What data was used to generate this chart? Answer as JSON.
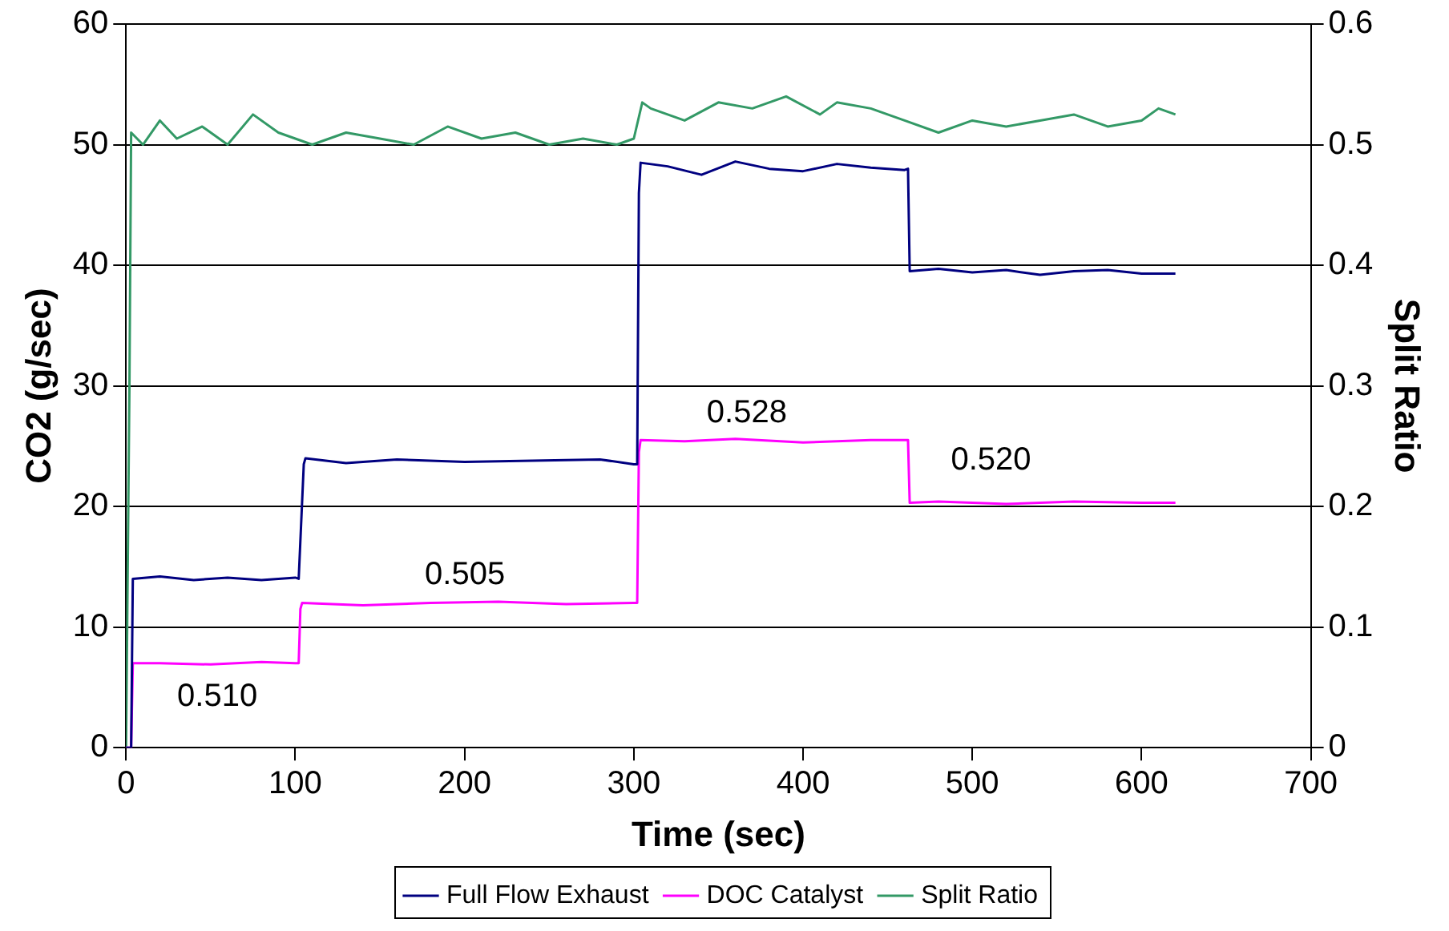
{
  "chart_data": {
    "type": "line",
    "xlabel": "Time (sec)",
    "ylabel": "CO2 (g/sec)",
    "y2label": "Split Ratio",
    "xlim": [
      0,
      700
    ],
    "xticks": [
      0,
      100,
      200,
      300,
      400,
      500,
      600,
      700
    ],
    "ylim": [
      0,
      60
    ],
    "yticks": [
      0,
      10,
      20,
      30,
      40,
      50,
      60
    ],
    "y2lim": [
      0,
      0.6
    ],
    "y2ticks": [
      0,
      0.1,
      0.2,
      0.3,
      0.4,
      0.5,
      0.6
    ],
    "grid": "y",
    "legend": "bottom",
    "marker": "none",
    "line_style": "solid",
    "series": [
      {
        "name": "Full Flow Exhaust",
        "color": "#000080",
        "x": [
          0,
          3,
          4,
          20,
          40,
          60,
          80,
          100,
          102,
          105,
          106,
          130,
          160,
          200,
          240,
          280,
          300,
          302,
          303,
          304,
          320,
          340,
          360,
          380,
          400,
          420,
          440,
          460,
          462,
          463,
          480,
          500,
          520,
          540,
          560,
          580,
          600,
          620
        ],
        "values": [
          0,
          0,
          14,
          14.2,
          13.9,
          14.1,
          13.9,
          14.1,
          14,
          23.5,
          24,
          23.6,
          23.9,
          23.7,
          23.8,
          23.9,
          23.5,
          23.5,
          46,
          48.5,
          48.2,
          47.5,
          48.6,
          48,
          47.8,
          48.4,
          48.1,
          47.9,
          48,
          39.5,
          39.7,
          39.4,
          39.6,
          39.2,
          39.5,
          39.6,
          39.3,
          39.3
        ]
      },
      {
        "name": "DOC Catalyst",
        "color": "#ff00ff",
        "x": [
          0,
          3,
          4,
          20,
          50,
          80,
          100,
          102,
          103,
          104,
          140,
          180,
          220,
          260,
          300,
          302,
          303,
          304,
          330,
          360,
          400,
          440,
          460,
          462,
          463,
          480,
          520,
          560,
          600,
          620
        ],
        "values": [
          0,
          0,
          7,
          7,
          6.9,
          7.1,
          7,
          7,
          11.5,
          12,
          11.8,
          12,
          12.1,
          11.9,
          12,
          12,
          24.5,
          25.5,
          25.4,
          25.6,
          25.3,
          25.5,
          25.5,
          25.5,
          20.3,
          20.4,
          20.2,
          20.4,
          20.3,
          20.3
        ]
      },
      {
        "name": "Split Ratio",
        "color": "#339966",
        "axis": "y2",
        "x": [
          0,
          2,
          3,
          10,
          20,
          30,
          45,
          60,
          75,
          90,
          110,
          130,
          150,
          170,
          190,
          210,
          230,
          250,
          270,
          290,
          300,
          305,
          310,
          330,
          350,
          370,
          390,
          410,
          420,
          440,
          460,
          480,
          500,
          520,
          540,
          560,
          580,
          600,
          610,
          620
        ],
        "values": [
          0,
          0.3,
          0.51,
          0.5,
          0.52,
          0.505,
          0.515,
          0.5,
          0.525,
          0.51,
          0.5,
          0.51,
          0.505,
          0.5,
          0.515,
          0.505,
          0.51,
          0.5,
          0.505,
          0.5,
          0.505,
          0.535,
          0.53,
          0.52,
          0.535,
          0.53,
          0.54,
          0.525,
          0.535,
          0.53,
          0.52,
          0.51,
          0.52,
          0.515,
          0.52,
          0.525,
          0.515,
          0.52,
          0.53,
          0.525
        ]
      }
    ],
    "annotations": [
      "0.510",
      "0.505",
      "0.528",
      "0.520"
    ]
  }
}
